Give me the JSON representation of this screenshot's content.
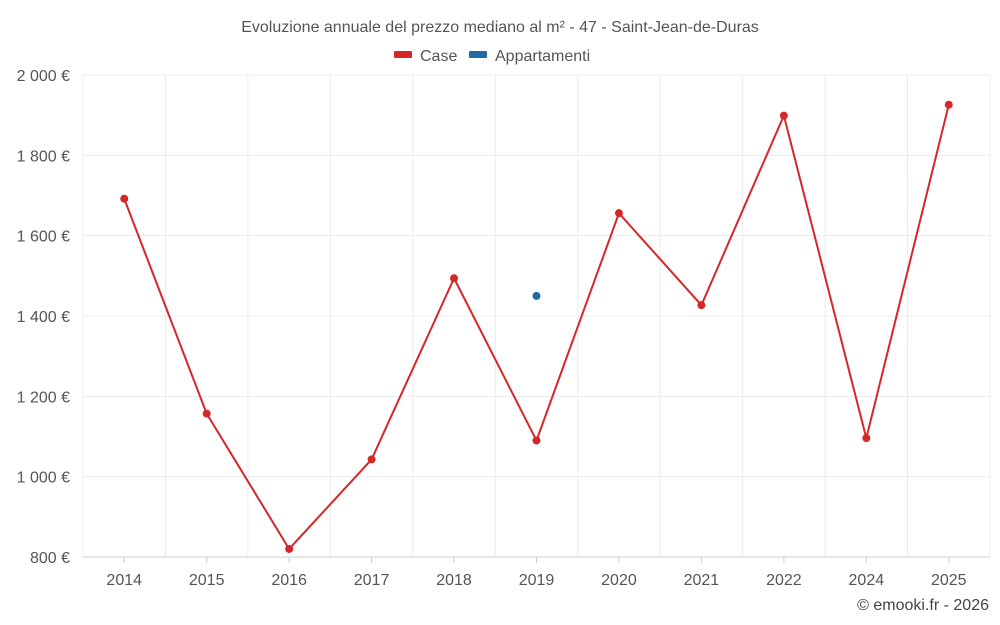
{
  "chart_data": {
    "type": "line",
    "title": "Evoluzione annuale del prezzo mediano al m² - 47 - Saint-Jean-de-Duras",
    "categories": [
      "2014",
      "2015",
      "2016",
      "2017",
      "2018",
      "2019",
      "2020",
      "2021",
      "2022",
      "2024",
      "2025"
    ],
    "series": [
      {
        "name": "Case",
        "color": "#d62728",
        "values": [
          1692,
          1157,
          820,
          1043,
          1494,
          1090,
          1656,
          1427,
          1899,
          1096,
          1926
        ]
      },
      {
        "name": "Appartamenti",
        "color": "#1f6aa5",
        "values": [
          null,
          null,
          null,
          null,
          null,
          1450,
          null,
          null,
          null,
          null,
          null
        ]
      }
    ],
    "ylim": [
      800,
      2000
    ],
    "yticks": [
      800,
      1000,
      1200,
      1400,
      1600,
      1800,
      2000
    ],
    "ytick_labels": [
      "800 €",
      "1 000 €",
      "1 200 €",
      "1 400 €",
      "1 600 €",
      "1 800 €",
      "2 000 €"
    ],
    "legend_position": "top-center",
    "grid": true,
    "xlabel": "",
    "ylabel": ""
  },
  "credit": "© emooki.fr - 2026"
}
